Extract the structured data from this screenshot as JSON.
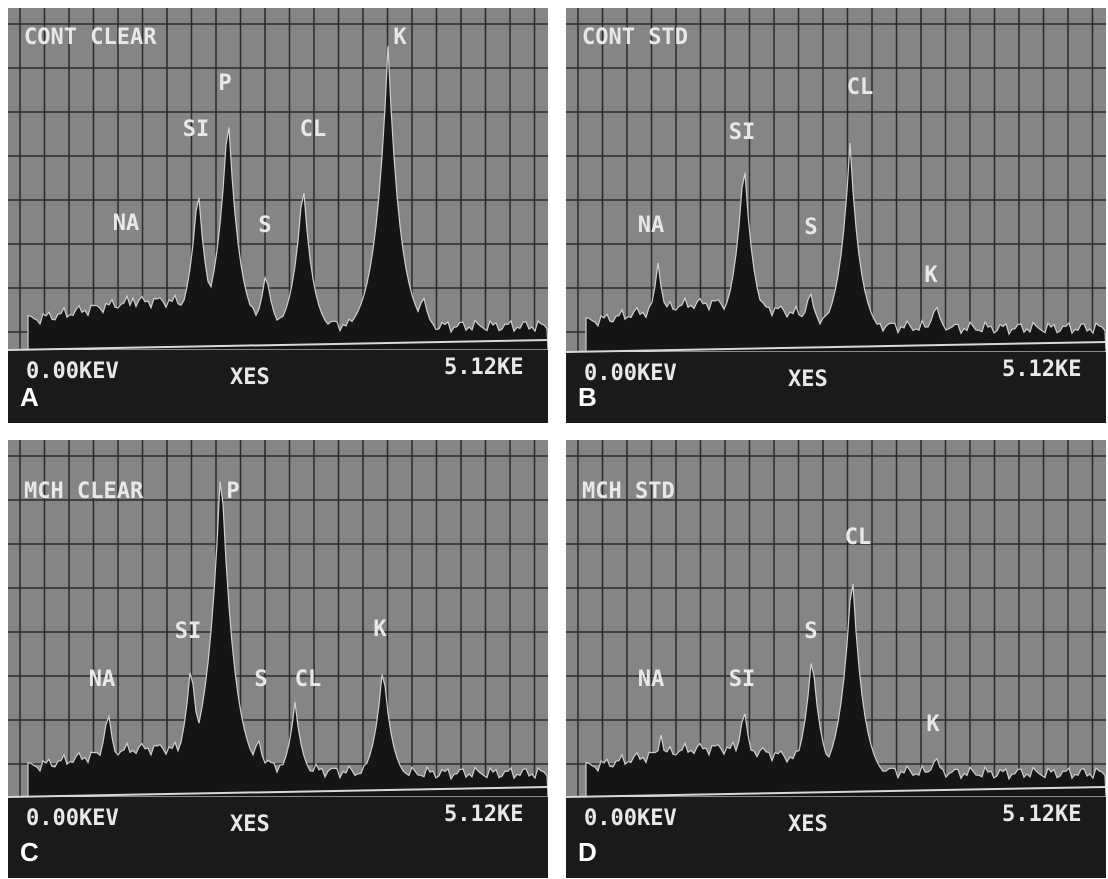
{
  "panels": [
    {
      "letter": "A",
      "title": "CONT CLEAR",
      "peaks": [
        "K",
        "P",
        "SI",
        "CL",
        "NA",
        "S"
      ],
      "x_start": "0.00KEV",
      "x_mid": "XES",
      "x_end": "5.12KE"
    },
    {
      "letter": "B",
      "title": "CONT STD",
      "peaks": [
        "CL",
        "SI",
        "NA",
        "S",
        "K"
      ],
      "x_start": "0.00KEV",
      "x_mid": "XES",
      "x_end": "5.12KE"
    },
    {
      "letter": "C",
      "title": "MCH CLEAR",
      "peaks": [
        "P",
        "SI",
        "K",
        "NA",
        "S",
        "CL"
      ],
      "x_start": "0.00KEV",
      "x_mid": "XES",
      "x_end": "5.12KE"
    },
    {
      "letter": "D",
      "title": "MCH STD",
      "peaks": [
        "CL",
        "S",
        "NA",
        "SI",
        "K"
      ],
      "x_start": "0.00KEV",
      "x_mid": "XES",
      "x_end": "5.12KE"
    }
  ]
}
